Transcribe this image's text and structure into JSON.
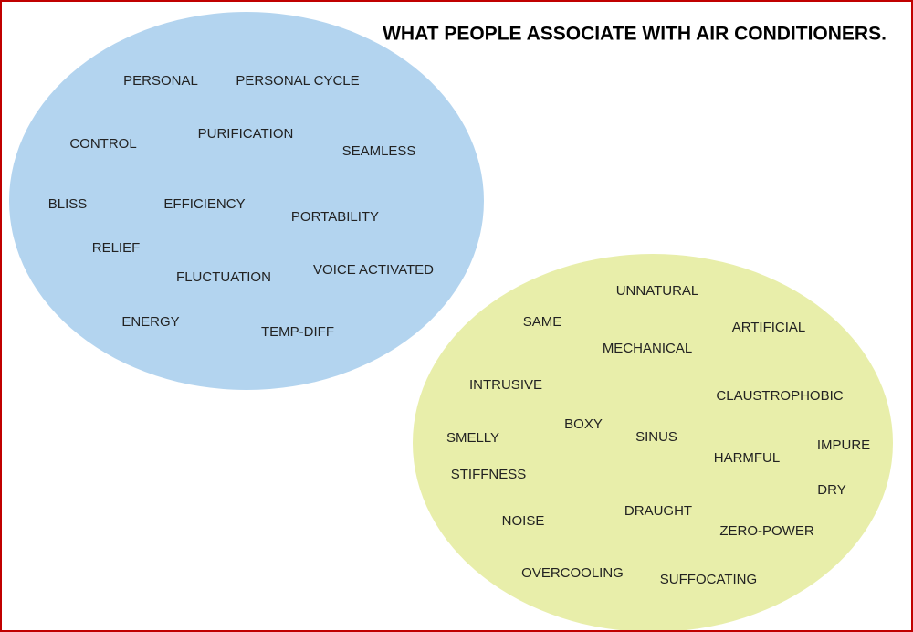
{
  "title": "WHAT PEOPLE ASSOCIATE WITH AIR CONDITIONERS.",
  "positive": [
    "PERSONAL",
    "PERSONAL CYCLE",
    "CONTROL",
    "PURIFICATION",
    "SEAMLESS",
    "BLISS",
    "EFFICIENCY",
    "PORTABILITY",
    "RELIEF",
    "FLUCTUATION",
    "VOICE ACTIVATED",
    "ENERGY",
    "TEMP-DIFF"
  ],
  "negative": [
    "UNNATURAL",
    "SAME",
    "MECHANICAL",
    "ARTIFICIAL",
    "INTRUSIVE",
    "CLAUSTROPHOBIC",
    "BOXY",
    "SINUS",
    "SMELLY",
    "HARMFUL",
    "IMPURE",
    "STIFFNESS",
    "DRY",
    "DRAUGHT",
    "NOISE",
    "ZERO-POWER",
    "OVERCOOLING",
    "SUFFOCATING"
  ]
}
